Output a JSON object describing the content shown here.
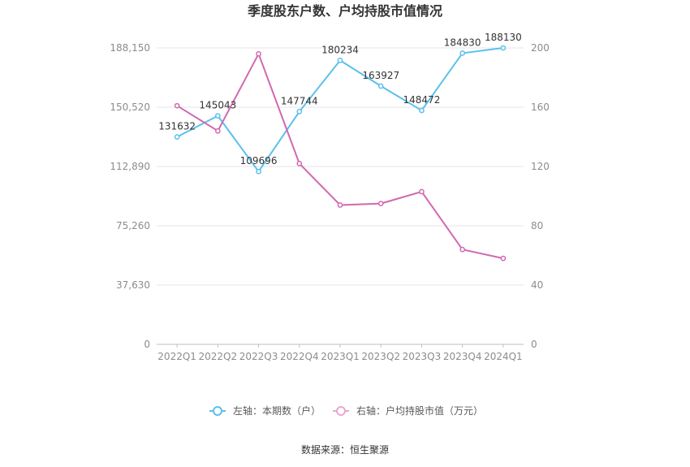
{
  "chart_data": {
    "type": "line",
    "title": "季度股东户数、户均持股市值情况",
    "categories": [
      "2022Q1",
      "2022Q2",
      "2022Q3",
      "2022Q4",
      "2023Q1",
      "2023Q2",
      "2023Q3",
      "2023Q4",
      "2024Q1"
    ],
    "left_axis": {
      "ticks": [
        "0",
        "37,630",
        "75,260",
        "112,890",
        "150,520",
        "188,150"
      ],
      "ylim": [
        0,
        188150
      ]
    },
    "right_axis": {
      "ticks": [
        "0",
        "40",
        "80",
        "120",
        "160",
        "200"
      ],
      "ylim": [
        0,
        200
      ]
    },
    "series": [
      {
        "name": "左轴：本期数（户）",
        "axis": "left",
        "color": "#5bc0eb",
        "values": [
          131632,
          145043,
          109696,
          147744,
          180234,
          163927,
          148472,
          184830,
          188130
        ],
        "labels": [
          "131632",
          "145043",
          "109696",
          "147744",
          "180234",
          "163927",
          "148472",
          "184830",
          "188130"
        ]
      },
      {
        "name": "右轴：户均持股市值（万元）",
        "axis": "right",
        "color": "#d268b0",
        "values": [
          161,
          144,
          196,
          122,
          94,
          95,
          103,
          64,
          58
        ]
      }
    ],
    "grid": true,
    "legend": "bottom-center"
  },
  "source": "数据来源：恒生聚源"
}
